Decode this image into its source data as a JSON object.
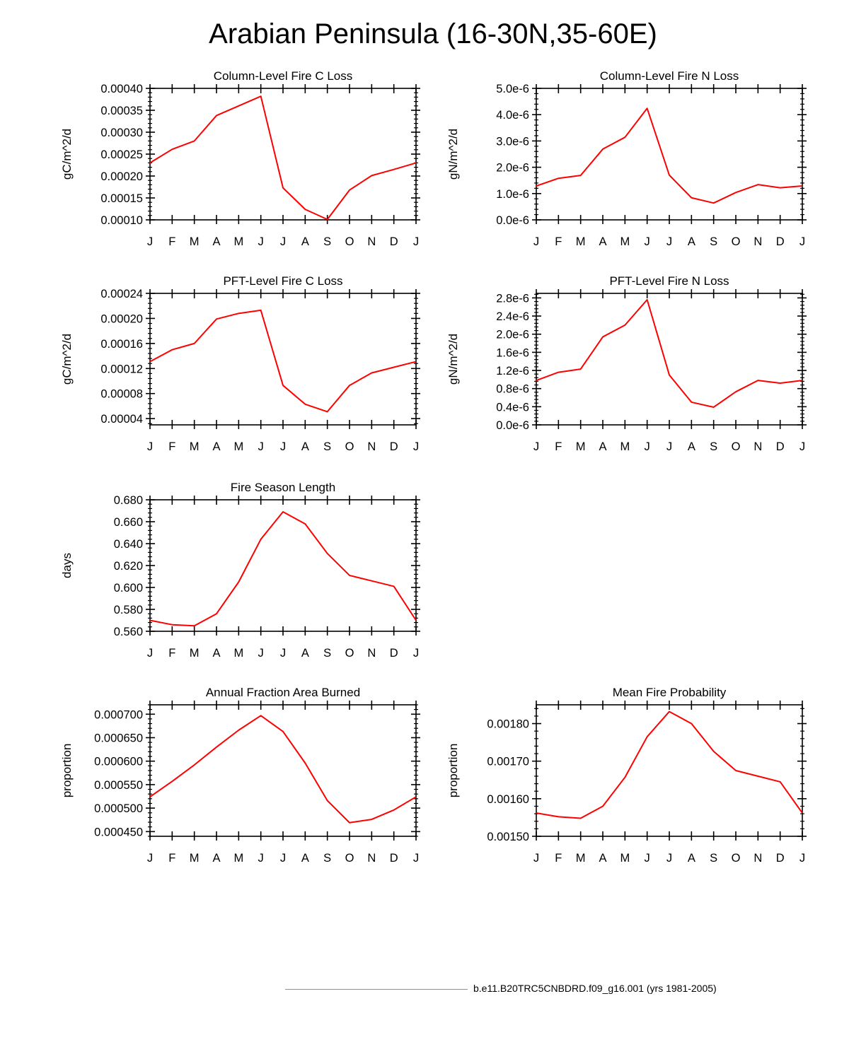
{
  "page": {
    "title": "Arabian Peninsula (16-30N,35-60E)"
  },
  "legend": {
    "label": "b.e11.B20TRC5CNBDRD.f09_g16.001 (yrs 1981-2005)",
    "line_color": "#e8696e"
  },
  "colors": {
    "series": "#ff0000",
    "axis": "#000000"
  },
  "chart_data": [
    {
      "id": "col-fire-c",
      "type": "line",
      "title": "Column-Level Fire C Loss",
      "ylabel": "gC/m^2/d",
      "xlabel": "",
      "categories": [
        "J",
        "F",
        "M",
        "A",
        "M",
        "J",
        "J",
        "A",
        "S",
        "O",
        "N",
        "D",
        "J"
      ],
      "ylim": [
        0.0001,
        0.0004
      ],
      "yticks": [
        0.0001,
        0.00015,
        0.0002,
        0.00025,
        0.0003,
        0.00035,
        0.0004
      ],
      "ytick_labels": [
        "0.00010",
        "0.00015",
        "0.00020",
        "0.00025",
        "0.00030",
        "0.00035",
        "0.00040"
      ],
      "values": [
        0.00023,
        0.000261,
        0.00028,
        0.000338,
        0.00036,
        0.000382,
        0.000173,
        0.000124,
        0.000101,
        0.000168,
        0.000201,
        0.000215,
        0.00023
      ]
    },
    {
      "id": "col-fire-n",
      "type": "line",
      "title": "Column-Level Fire N Loss",
      "ylabel": "gN/m^2/d",
      "xlabel": "",
      "categories": [
        "J",
        "F",
        "M",
        "A",
        "M",
        "J",
        "J",
        "A",
        "S",
        "O",
        "N",
        "D",
        "J"
      ],
      "ylim": [
        0,
        5e-06
      ],
      "yticks": [
        0,
        1e-06,
        2e-06,
        3e-06,
        4e-06,
        5e-06
      ],
      "ytick_labels": [
        "0.0e-6",
        "1.0e-6",
        "2.0e-6",
        "3.0e-6",
        "4.0e-6",
        "5.0e-6"
      ],
      "values": [
        1.29e-06,
        1.58e-06,
        1.69e-06,
        2.69e-06,
        3.14e-06,
        4.24e-06,
        1.7e-06,
        8.4e-07,
        6.4e-07,
        1.04e-06,
        1.34e-06,
        1.22e-06,
        1.29e-06
      ]
    },
    {
      "id": "pft-fire-c",
      "type": "line",
      "title": "PFT-Level Fire C Loss",
      "ylabel": "gC/m^2/d",
      "xlabel": "",
      "categories": [
        "J",
        "F",
        "M",
        "A",
        "M",
        "J",
        "J",
        "A",
        "S",
        "O",
        "N",
        "D",
        "J"
      ],
      "ylim": [
        3e-05,
        0.00024
      ],
      "yticks": [
        4e-05,
        8e-05,
        0.00012,
        0.00016,
        0.0002,
        0.00024
      ],
      "ytick_labels": [
        "0.00004",
        "0.00008",
        "0.00012",
        "0.00016",
        "0.00020",
        "0.00024"
      ],
      "values": [
        0.000131,
        0.00015,
        0.00016,
        0.000199,
        0.000208,
        0.000213,
        9.3e-05,
        6.3e-05,
        5.1e-05,
        9.3e-05,
        0.000113,
        0.000122,
        0.000131
      ]
    },
    {
      "id": "pft-fire-n",
      "type": "line",
      "title": "PFT-Level Fire N Loss",
      "ylabel": "gN/m^2/d",
      "xlabel": "",
      "categories": [
        "J",
        "F",
        "M",
        "A",
        "M",
        "J",
        "J",
        "A",
        "S",
        "O",
        "N",
        "D",
        "J"
      ],
      "ylim": [
        0,
        2.9e-06
      ],
      "yticks": [
        0,
        4e-07,
        8e-07,
        1.2e-06,
        1.6e-06,
        2e-06,
        2.4e-06,
        2.8e-06
      ],
      "ytick_labels": [
        "0.0e-6",
        "0.4e-6",
        "0.8e-6",
        "1.2e-6",
        "1.6e-6",
        "2.0e-6",
        "2.4e-6",
        "2.8e-6"
      ],
      "values": [
        9.8e-07,
        1.16e-06,
        1.23e-06,
        1.94e-06,
        2.2e-06,
        2.76e-06,
        1.1e-06,
        5e-07,
        3.9e-07,
        7.3e-07,
        9.8e-07,
        9.2e-07,
        9.8e-07
      ]
    },
    {
      "id": "fire-season",
      "type": "line",
      "title": "Fire Season Length",
      "ylabel": "days",
      "xlabel": "",
      "categories": [
        "J",
        "F",
        "M",
        "A",
        "M",
        "J",
        "J",
        "A",
        "S",
        "O",
        "N",
        "D",
        "J"
      ],
      "ylim": [
        0.56,
        0.68
      ],
      "yticks": [
        0.56,
        0.58,
        0.6,
        0.62,
        0.64,
        0.66,
        0.68
      ],
      "ytick_labels": [
        "0.560",
        "0.580",
        "0.600",
        "0.620",
        "0.640",
        "0.660",
        "0.680"
      ],
      "values": [
        0.57,
        0.566,
        0.565,
        0.576,
        0.605,
        0.644,
        0.669,
        0.658,
        0.631,
        0.611,
        0.606,
        0.601,
        0.57
      ]
    },
    {
      "id": "annual-fraction",
      "type": "line",
      "title": "Annual Fraction Area Burned",
      "ylabel": "proportion",
      "xlabel": "",
      "categories": [
        "J",
        "F",
        "M",
        "A",
        "M",
        "J",
        "J",
        "A",
        "S",
        "O",
        "N",
        "D",
        "J"
      ],
      "ylim": [
        0.00044,
        0.00072
      ],
      "yticks": [
        0.00045,
        0.0005,
        0.00055,
        0.0006,
        0.00065,
        0.0007
      ],
      "ytick_labels": [
        "0.000450",
        "0.000500",
        "0.000550",
        "0.000600",
        "0.000650",
        "0.000700"
      ],
      "values": [
        0.000524,
        0.000557,
        0.000592,
        0.00063,
        0.000666,
        0.000697,
        0.000663,
        0.000596,
        0.000516,
        0.000469,
        0.000476,
        0.000496,
        0.000524
      ]
    },
    {
      "id": "mean-fire-prob",
      "type": "line",
      "title": "Mean Fire Probability",
      "ylabel": "proportion",
      "xlabel": "",
      "categories": [
        "J",
        "F",
        "M",
        "A",
        "M",
        "J",
        "J",
        "A",
        "S",
        "O",
        "N",
        "D",
        "J"
      ],
      "ylim": [
        0.0015,
        0.00185
      ],
      "yticks": [
        0.0015,
        0.0016,
        0.0017,
        0.0018
      ],
      "ytick_labels": [
        "0.00150",
        "0.00160",
        "0.00170",
        "0.00180"
      ],
      "values": [
        0.001562,
        0.001552,
        0.001548,
        0.00158,
        0.001657,
        0.001765,
        0.001832,
        0.0018,
        0.001726,
        0.001675,
        0.00166,
        0.001645,
        0.001562
      ]
    }
  ]
}
